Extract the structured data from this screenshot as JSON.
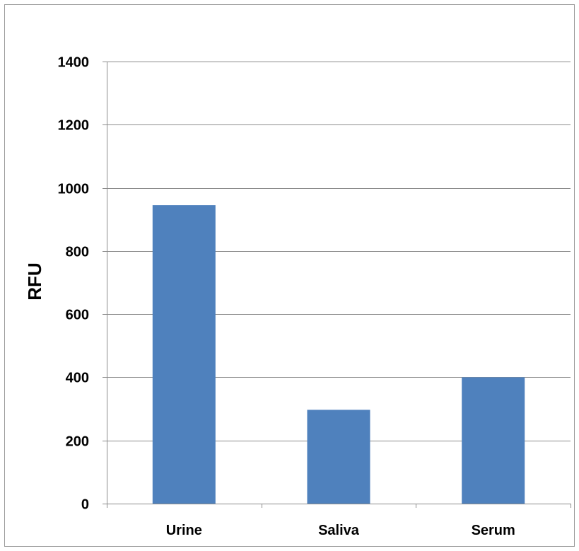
{
  "chart_data": {
    "type": "bar",
    "title": "",
    "xlabel": "",
    "ylabel": "RFU",
    "categories": [
      "Urine",
      "Saliva",
      "Serum"
    ],
    "values": [
      945,
      297,
      400
    ],
    "ylim": [
      0,
      1400
    ],
    "yticks": [
      "0",
      "200",
      "400",
      "600",
      "800",
      "1000",
      "1200",
      "1400"
    ],
    "grid": true,
    "legend": "none",
    "colors": {
      "bar": "#4f81bd",
      "grid": "#8c8c8c",
      "axis": "#8c8c8c",
      "frame": "#9a9a9a"
    }
  }
}
